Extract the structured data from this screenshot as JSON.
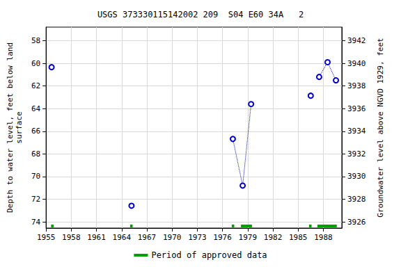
{
  "chart_data": {
    "type": "line",
    "title": "USGS 373330115142002 209  S04 E60 34A   2",
    "y_label": "Depth to water level, feet below land\nsurface",
    "y2_label": "Groundwater level above NGVD 1929, feet",
    "xlim": [
      1955,
      1990.2
    ],
    "xticks": [
      1955,
      1958,
      1961,
      1964,
      1967,
      1970,
      1973,
      1976,
      1979,
      1982,
      1985,
      1988
    ],
    "ylim": [
      56.8,
      74.55
    ],
    "yticks": [
      58,
      60,
      62,
      64,
      66,
      68,
      70,
      72,
      74
    ],
    "y_inverted": true,
    "y2lim": [
      3925.45,
      3943.2
    ],
    "y2ticks": [
      3926,
      3928,
      3930,
      3932,
      3934,
      3936,
      3938,
      3940,
      3942
    ],
    "grid": true,
    "legend": "bottom",
    "series": [
      {
        "x": [
          1955.66
        ],
        "values": [
          60.34
        ],
        "color": "#0000cc",
        "marker": "circle",
        "line_style": "dotted"
      },
      {
        "x": [
          1965.17
        ],
        "values": [
          72.58
        ],
        "color": "#0000cc",
        "marker": "circle",
        "line_style": "dotted"
      },
      {
        "x": [
          1977.23,
          1978.4,
          1979.4
        ],
        "values": [
          66.68,
          70.8,
          63.6
        ],
        "color": "#0000cc",
        "marker": "circle",
        "line_style": "dotted"
      },
      {
        "x": [
          1986.5
        ],
        "values": [
          62.86
        ],
        "color": "#0000cc",
        "marker": "circle",
        "line_style": "dotted"
      },
      {
        "x": [
          1987.5,
          1988.5,
          1989.5
        ],
        "values": [
          61.2,
          59.9,
          61.5
        ],
        "color": "#0000cc",
        "marker": "circle",
        "line_style": "dotted"
      }
    ],
    "approved_periods": {
      "name": "Period of approved data",
      "color": "#00a000",
      "ranges": [
        [
          1955.6,
          1955.9
        ],
        [
          1965.0,
          1965.3
        ],
        [
          1977.1,
          1977.4
        ],
        [
          1978.2,
          1979.5
        ],
        [
          1986.3,
          1986.6
        ],
        [
          1987.3,
          1989.6
        ]
      ]
    }
  }
}
